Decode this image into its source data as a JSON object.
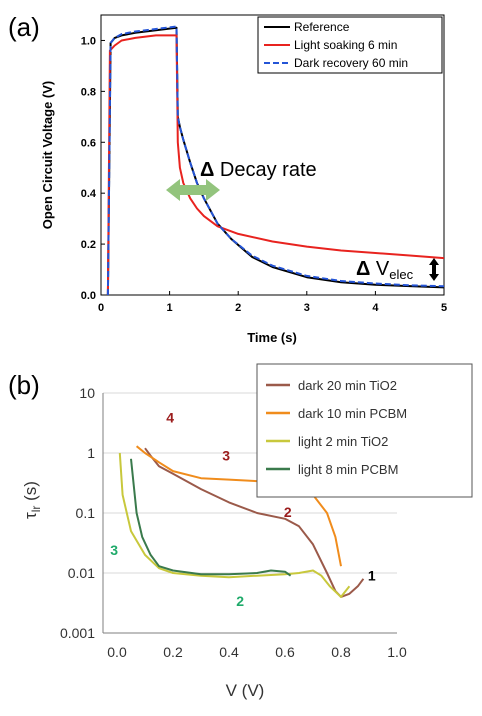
{
  "panel_a_letter": "(a)",
  "panel_b_letter": "(b)",
  "chart_data": [
    {
      "type": "line",
      "panel": "(a)",
      "title": "",
      "xlabel": "Time (s)",
      "ylabel": "Open Circuit Voltage (V)",
      "xlim": [
        0,
        5
      ],
      "ylim": [
        0,
        1.1
      ],
      "xticks": [
        "0",
        "1",
        "2",
        "3",
        "4",
        "5"
      ],
      "yticks": [
        "0.0",
        "0.2",
        "0.4",
        "0.6",
        "0.8",
        "1.0"
      ],
      "legend_position": "top-right",
      "series": [
        {
          "name": "Reference",
          "color": "#000000",
          "dash": "solid",
          "x": [
            0.1,
            0.14,
            0.2,
            0.3,
            0.5,
            0.8,
            1.1,
            1.12,
            1.15,
            1.2,
            1.3,
            1.4,
            1.5,
            1.7,
            1.9,
            2.2,
            2.5,
            3.0,
            3.5,
            4.0,
            4.5,
            5.0
          ],
          "y": [
            0.0,
            0.99,
            1.01,
            1.02,
            1.03,
            1.04,
            1.05,
            0.7,
            0.66,
            0.61,
            0.52,
            0.44,
            0.38,
            0.28,
            0.22,
            0.15,
            0.11,
            0.07,
            0.05,
            0.04,
            0.035,
            0.03
          ]
        },
        {
          "name": "Light soaking 6 min",
          "color": "#e8231f",
          "dash": "solid",
          "x": [
            0.1,
            0.13,
            0.2,
            0.3,
            0.5,
            0.8,
            1.1,
            1.12,
            1.15,
            1.2,
            1.3,
            1.4,
            1.5,
            1.7,
            2.0,
            2.5,
            3.0,
            3.5,
            4.0,
            4.5,
            5.0
          ],
          "y": [
            0.0,
            0.96,
            0.98,
            1.0,
            1.01,
            1.02,
            1.02,
            0.6,
            0.5,
            0.44,
            0.38,
            0.34,
            0.31,
            0.27,
            0.24,
            0.21,
            0.19,
            0.175,
            0.165,
            0.155,
            0.145
          ]
        },
        {
          "name": "Dark recovery 60 min",
          "color": "#2454d6",
          "dash": "dashed",
          "x": [
            0.1,
            0.14,
            0.2,
            0.3,
            0.5,
            0.8,
            1.1,
            1.12,
            1.15,
            1.2,
            1.3,
            1.4,
            1.5,
            1.7,
            1.9,
            2.2,
            2.5,
            3.0,
            3.5,
            4.0,
            4.5,
            5.0
          ],
          "y": [
            0.0,
            0.99,
            1.01,
            1.025,
            1.035,
            1.045,
            1.055,
            0.7,
            0.66,
            0.61,
            0.52,
            0.44,
            0.38,
            0.28,
            0.22,
            0.155,
            0.115,
            0.075,
            0.055,
            0.045,
            0.038,
            0.034
          ]
        }
      ],
      "annotations": [
        {
          "text_main": "Δ",
          "text_rest": " Decay rate",
          "x": 1.2,
          "y": 0.46
        },
        {
          "text_main": "Δ",
          "text_v": " V",
          "text_sub": "elec",
          "x": 4.05,
          "y": 0.09
        }
      ]
    },
    {
      "type": "line",
      "panel": "(b)",
      "title": "",
      "xlabel": "V (V)",
      "ylabel": "τ",
      "ylabel_sub": "lr",
      "ylabel_unit": " (s)",
      "xlim": [
        -0.05,
        1.0
      ],
      "ylim": [
        0.001,
        10
      ],
      "yscale": "log",
      "xticks": [
        "0.0",
        "0.2",
        "0.4",
        "0.6",
        "0.8",
        "1.0"
      ],
      "yticks": [
        "0.001",
        "0.01",
        "0.1",
        "1",
        "10"
      ],
      "legend_position": "top-right",
      "series": [
        {
          "name": "dark 20 min TiO2",
          "color": "#9b5a4a",
          "x": [
            0.1,
            0.12,
            0.15,
            0.2,
            0.3,
            0.4,
            0.5,
            0.6,
            0.65,
            0.7,
            0.75,
            0.78,
            0.8,
            0.83,
            0.86,
            0.88
          ],
          "y": [
            1.2,
            0.9,
            0.6,
            0.45,
            0.25,
            0.15,
            0.1,
            0.08,
            0.06,
            0.03,
            0.01,
            0.005,
            0.004,
            0.0045,
            0.006,
            0.008
          ]
        },
        {
          "name": "dark 10 min PCBM",
          "color": "#f08c1c",
          "x": [
            0.07,
            0.1,
            0.15,
            0.2,
            0.3,
            0.4,
            0.5,
            0.6,
            0.65,
            0.7,
            0.75,
            0.78,
            0.8
          ],
          "y": [
            1.3,
            1.0,
            0.7,
            0.5,
            0.38,
            0.36,
            0.34,
            0.32,
            0.28,
            0.2,
            0.1,
            0.04,
            0.013
          ]
        },
        {
          "name": "light 2 min TiO2",
          "color": "#c8c83c",
          "x": [
            0.01,
            0.02,
            0.05,
            0.1,
            0.15,
            0.2,
            0.3,
            0.4,
            0.5,
            0.6,
            0.65,
            0.7,
            0.73,
            0.76,
            0.8,
            0.83
          ],
          "y": [
            1.0,
            0.2,
            0.05,
            0.02,
            0.012,
            0.01,
            0.009,
            0.0085,
            0.009,
            0.0095,
            0.01,
            0.011,
            0.009,
            0.006,
            0.004,
            0.006
          ]
        },
        {
          "name": "light 8 min PCBM",
          "color": "#3a7a4c",
          "x": [
            0.05,
            0.07,
            0.09,
            0.12,
            0.15,
            0.2,
            0.3,
            0.4,
            0.5,
            0.55,
            0.6,
            0.62
          ],
          "y": [
            0.8,
            0.1,
            0.04,
            0.02,
            0.013,
            0.011,
            0.0095,
            0.0095,
            0.01,
            0.011,
            0.0105,
            0.009
          ]
        }
      ],
      "labels": [
        {
          "text": "1",
          "color": "#000000",
          "x": 0.91,
          "y": 0.0075
        },
        {
          "text": "2",
          "color": "#9b1c1c",
          "x": 0.61,
          "y": 0.085
        },
        {
          "text": "3",
          "color": "#9b1c1c",
          "x": 0.39,
          "y": 0.75
        },
        {
          "text": "4",
          "color": "#9b1c1c",
          "x": 0.19,
          "y": 3.2
        },
        {
          "text": "2",
          "color": "#1faa6a",
          "x": 0.44,
          "y": 0.0028
        },
        {
          "text": "3",
          "color": "#1faa6a",
          "x": -0.01,
          "y": 0.02
        }
      ]
    }
  ]
}
